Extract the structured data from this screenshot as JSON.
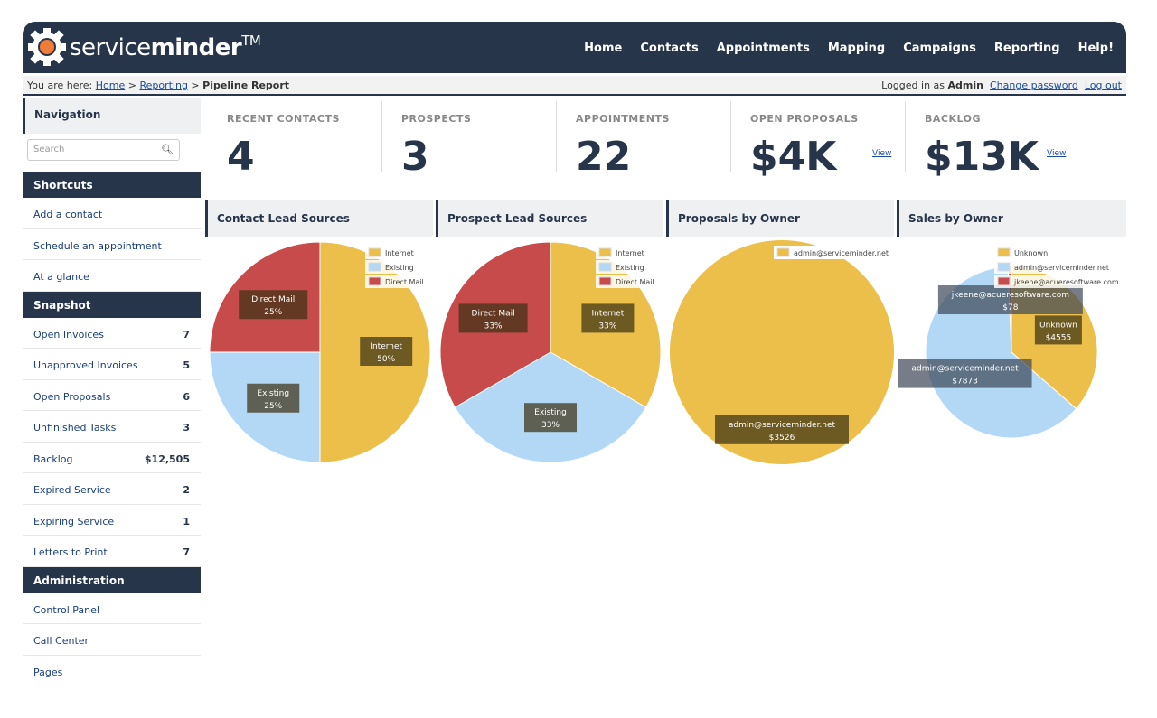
{
  "header": {
    "brand_light": "service",
    "brand_bold": "minder",
    "tm": "TM",
    "nav": [
      "Home",
      "Contacts",
      "Appointments",
      "Mapping",
      "Campaigns",
      "Reporting",
      "Help!"
    ]
  },
  "breadcrumb": {
    "prefix": "You are here:",
    "home": "Home",
    "reporting": "Reporting",
    "current": "Pipeline Report",
    "logged_in_prefix": "Logged in as",
    "user": "Admin",
    "change_password": "Change password",
    "logout": "Log out"
  },
  "sidebar": {
    "navigation_title": "Navigation",
    "search_placeholder": "Search",
    "shortcuts_title": "Shortcuts",
    "shortcuts": [
      "Add a contact",
      "Schedule an appointment",
      "At a glance"
    ],
    "snapshot_title": "Snapshot",
    "snapshot": [
      {
        "label": "Open Invoices",
        "value": "7"
      },
      {
        "label": "Unapproved Invoices",
        "value": "5"
      },
      {
        "label": "Open Proposals",
        "value": "6"
      },
      {
        "label": "Unfinished Tasks",
        "value": "3"
      },
      {
        "label": "Backlog",
        "value": "$12,505"
      },
      {
        "label": "Expired Service",
        "value": "2"
      },
      {
        "label": "Expiring Service",
        "value": "1"
      },
      {
        "label": "Letters to Print",
        "value": "7"
      }
    ],
    "admin_title": "Administration",
    "admin": [
      "Control Panel",
      "Call Center",
      "Pages"
    ]
  },
  "stats": [
    {
      "label": "RECENT CONTACTS",
      "value": "4"
    },
    {
      "label": "PROSPECTS",
      "value": "3"
    },
    {
      "label": "APPOINTMENTS",
      "value": "22"
    },
    {
      "label": "OPEN PROPOSALS",
      "value": "$4K",
      "link": "View"
    },
    {
      "label": "BACKLOG",
      "value": "$13K",
      "link": "View"
    }
  ],
  "colors": {
    "header": "#26354a",
    "yellow": "#ecbf4a",
    "blue": "#b2d8f5",
    "red": "#c84b4b"
  },
  "chart_data": [
    {
      "type": "pie",
      "title": "Contact Lead Sources",
      "legend": [
        "Internet",
        "Existing",
        "Direct Mail"
      ],
      "slices": [
        {
          "name": "Internet",
          "value": 50,
          "label": "50%"
        },
        {
          "name": "Existing",
          "value": 25,
          "label": "25%"
        },
        {
          "name": "Direct Mail",
          "value": 25,
          "label": "25%"
        }
      ]
    },
    {
      "type": "pie",
      "title": "Prospect Lead Sources",
      "legend": [
        "Internet",
        "Existing",
        "Direct Mail"
      ],
      "slices": [
        {
          "name": "Internet",
          "value": 33.33,
          "label": "33%"
        },
        {
          "name": "Existing",
          "value": 33.33,
          "label": "33%"
        },
        {
          "name": "Direct Mail",
          "value": 33.33,
          "label": "33%"
        }
      ]
    },
    {
      "type": "pie",
      "title": "Proposals by Owner",
      "legend": [
        "admin@serviceminder.net"
      ],
      "slices": [
        {
          "name": "admin@serviceminder.net",
          "value": 3526,
          "label": "$3526"
        }
      ]
    },
    {
      "type": "pie",
      "title": "Sales by Owner",
      "legend": [
        "Unknown",
        "admin@serviceminder.net",
        "jkeene@acueresoftware.com"
      ],
      "slices": [
        {
          "name": "Unknown",
          "value": 4555,
          "label": "$4555"
        },
        {
          "name": "admin@serviceminder.net",
          "value": 7873,
          "label": "$7873"
        },
        {
          "name": "jkeene@acueresoftware.com",
          "value": 78,
          "label": "$78"
        }
      ]
    }
  ]
}
